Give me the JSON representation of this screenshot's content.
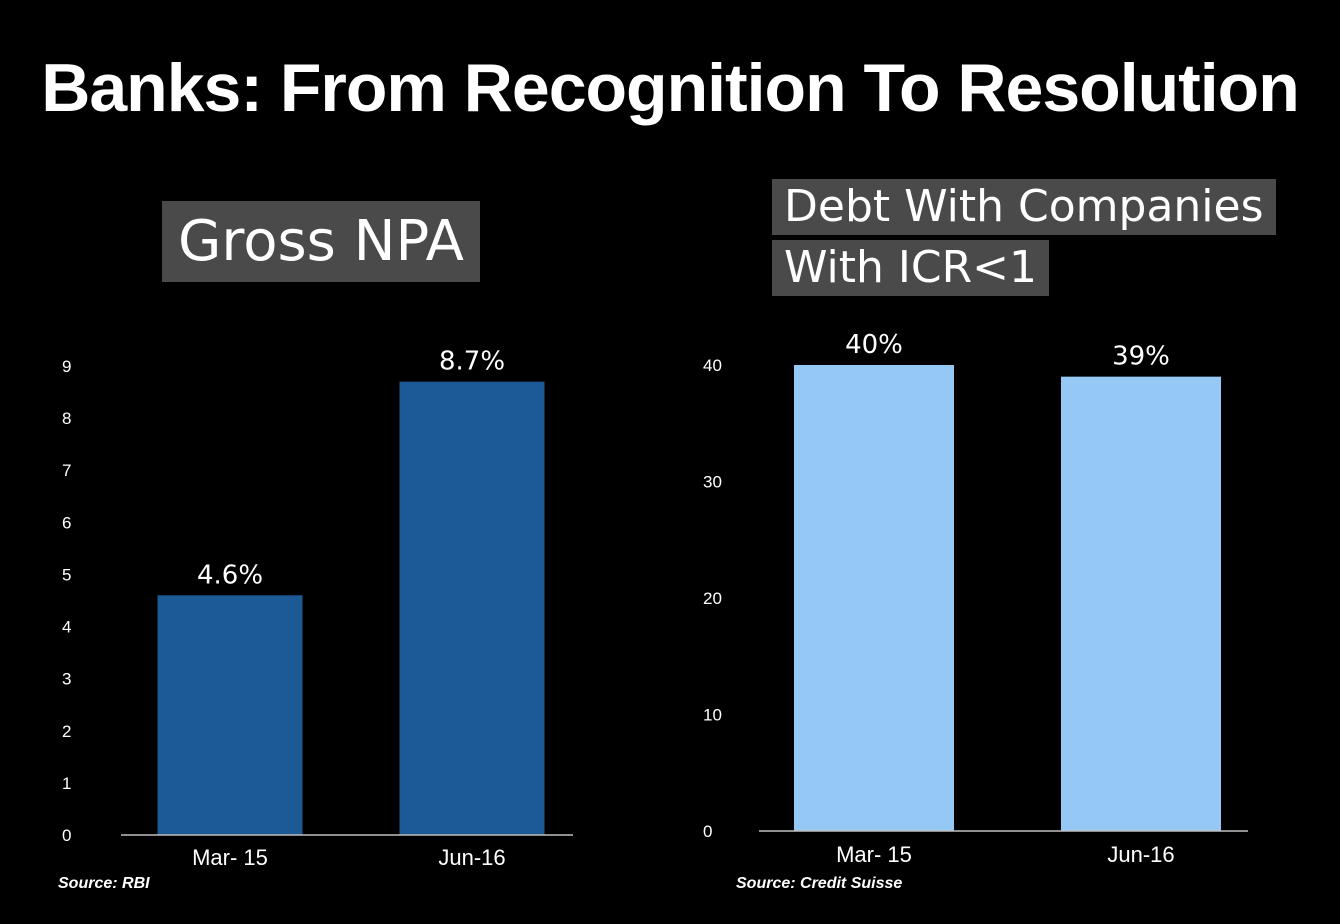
{
  "title": "Banks: From Recognition To Resolution",
  "colors": {
    "background": "#000000",
    "label_box": "#4a4a4a",
    "left_bar": "#1c5a96",
    "right_bar": "#96c8f5",
    "axis": "#bfbfbf"
  },
  "chart_data": [
    {
      "type": "bar",
      "title": "Gross NPA",
      "categories": [
        "Mar- 15",
        "Jun-16"
      ],
      "values": [
        4.6,
        8.7
      ],
      "data_labels": [
        "4.6%",
        "8.7%"
      ],
      "yticks": [
        0,
        1,
        2,
        3,
        4,
        5,
        6,
        7,
        8,
        9
      ],
      "ylim": [
        0,
        9
      ],
      "xlabel": "",
      "ylabel": "",
      "grid": false,
      "legend": "none",
      "source": "Source: RBI"
    },
    {
      "type": "bar",
      "title_lines": [
        "Debt With Companies",
        "With ICR<1"
      ],
      "categories": [
        "Mar- 15",
        "Jun-16"
      ],
      "values": [
        40,
        39
      ],
      "data_labels": [
        "40%",
        "39%"
      ],
      "yticks": [
        0,
        10,
        20,
        30,
        40
      ],
      "ylim": [
        0,
        40
      ],
      "xlabel": "",
      "ylabel": "",
      "grid": false,
      "legend": "none",
      "source": "Source: Credit Suisse"
    }
  ]
}
